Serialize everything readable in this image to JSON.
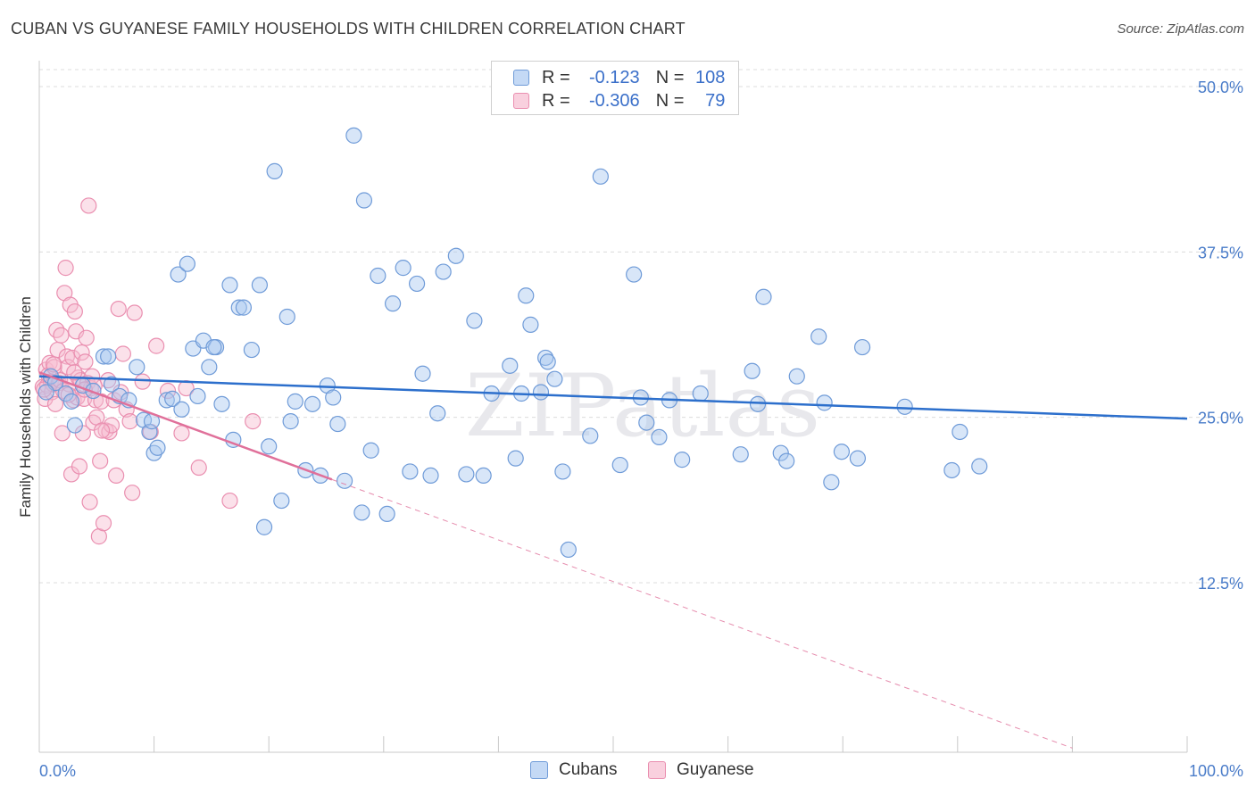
{
  "header": {
    "title": "CUBAN VS GUYANESE FAMILY HOUSEHOLDS WITH CHILDREN CORRELATION CHART",
    "source": "Source: ZipAtlas.com"
  },
  "legend_box": {
    "rows": [
      {
        "r_label": "R = ",
        "r_value": "-0.123",
        "n_label": "N = ",
        "n_value": "108"
      },
      {
        "r_label": "R = ",
        "r_value": "-0.306",
        "n_label": "N = ",
        "n_value": "79"
      }
    ]
  },
  "bottom_legend": {
    "cubans": "Cubans",
    "guyanese": "Guyanese"
  },
  "watermark": "ZIPatlas",
  "colors": {
    "cubans_fill": "#a9c7f0",
    "cubans_stroke": "#6f9bd8",
    "cubans_line": "#2c6fcc",
    "guyanese_fill": "#f6bdd0",
    "guyanese_stroke": "#ea8fb0",
    "guyanese_line": "#e0709a",
    "tick_text": "#4a7cc9",
    "grid": "#dcdcdc"
  },
  "chart_data": {
    "type": "scatter",
    "title": "CUBAN VS GUYANESE FAMILY HOUSEHOLDS WITH CHILDREN CORRELATION CHART",
    "xlabel": "",
    "ylabel": "Family Households with Children",
    "xlim": [
      0,
      100
    ],
    "ylim": [
      0,
      52
    ],
    "x_tick_labels": [
      "0.0%",
      "100.0%"
    ],
    "y_ticks": [
      12.5,
      25.0,
      37.5,
      50.0
    ],
    "y_tick_labels": [
      "12.5%",
      "25.0%",
      "37.5%",
      "50.0%"
    ],
    "grid": "horizontal dashed",
    "legend": "top-center",
    "series": [
      {
        "name": "Cubans",
        "r": -0.123,
        "n": 108,
        "trend": {
          "x": [
            0,
            100
          ],
          "y": [
            28.1,
            24.9
          ]
        },
        "points": [
          [
            1.0,
            28.1
          ],
          [
            1.4,
            27.6
          ],
          [
            2.3,
            26.8
          ],
          [
            2.8,
            26.2
          ],
          [
            3.8,
            27.4
          ],
          [
            4.7,
            27.0
          ],
          [
            5.6,
            29.6
          ],
          [
            6.3,
            27.5
          ],
          [
            7.0,
            26.6
          ],
          [
            7.8,
            26.3
          ],
          [
            8.5,
            28.8
          ],
          [
            9.1,
            24.8
          ],
          [
            9.6,
            23.9
          ],
          [
            10.0,
            22.3
          ],
          [
            10.3,
            22.7
          ],
          [
            11.1,
            26.3
          ],
          [
            11.6,
            26.4
          ],
          [
            12.1,
            35.8
          ],
          [
            12.4,
            25.6
          ],
          [
            12.9,
            36.6
          ],
          [
            13.4,
            30.2
          ],
          [
            13.8,
            26.6
          ],
          [
            14.3,
            30.8
          ],
          [
            14.8,
            28.8
          ],
          [
            15.4,
            30.3
          ],
          [
            15.9,
            26.0
          ],
          [
            16.6,
            35.0
          ],
          [
            16.9,
            23.3
          ],
          [
            17.4,
            33.3
          ],
          [
            17.8,
            33.3
          ],
          [
            18.5,
            30.1
          ],
          [
            19.2,
            35.0
          ],
          [
            19.6,
            16.7
          ],
          [
            20.0,
            22.8
          ],
          [
            20.5,
            43.6
          ],
          [
            21.1,
            18.7
          ],
          [
            21.6,
            32.6
          ],
          [
            21.9,
            24.7
          ],
          [
            22.3,
            26.2
          ],
          [
            23.2,
            21.0
          ],
          [
            23.8,
            26.0
          ],
          [
            24.5,
            20.6
          ],
          [
            25.1,
            27.4
          ],
          [
            25.6,
            26.5
          ],
          [
            26.0,
            24.5
          ],
          [
            26.6,
            20.2
          ],
          [
            27.4,
            46.3
          ],
          [
            28.1,
            17.8
          ],
          [
            28.3,
            41.4
          ],
          [
            28.9,
            22.5
          ],
          [
            29.5,
            35.7
          ],
          [
            30.3,
            17.7
          ],
          [
            30.8,
            33.6
          ],
          [
            31.7,
            36.3
          ],
          [
            32.3,
            20.9
          ],
          [
            32.9,
            35.1
          ],
          [
            33.4,
            28.3
          ],
          [
            34.1,
            20.6
          ],
          [
            34.7,
            25.3
          ],
          [
            35.2,
            36.0
          ],
          [
            36.3,
            37.2
          ],
          [
            37.2,
            20.7
          ],
          [
            37.9,
            32.3
          ],
          [
            38.7,
            20.6
          ],
          [
            39.4,
            26.8
          ],
          [
            41.0,
            28.9
          ],
          [
            41.5,
            21.9
          ],
          [
            42.0,
            26.8
          ],
          [
            42.4,
            34.2
          ],
          [
            42.8,
            32.0
          ],
          [
            43.7,
            26.9
          ],
          [
            44.1,
            29.5
          ],
          [
            44.9,
            27.9
          ],
          [
            45.6,
            20.9
          ],
          [
            46.1,
            15.0
          ],
          [
            48.0,
            23.6
          ],
          [
            48.9,
            43.2
          ],
          [
            50.6,
            21.4
          ],
          [
            51.8,
            35.8
          ],
          [
            52.4,
            26.5
          ],
          [
            52.9,
            24.6
          ],
          [
            54.0,
            23.5
          ],
          [
            54.9,
            26.3
          ],
          [
            56.0,
            21.8
          ],
          [
            57.6,
            26.8
          ],
          [
            61.1,
            22.2
          ],
          [
            62.1,
            28.5
          ],
          [
            62.6,
            26.0
          ],
          [
            63.1,
            34.1
          ],
          [
            64.6,
            22.3
          ],
          [
            65.1,
            21.7
          ],
          [
            66.0,
            28.1
          ],
          [
            67.9,
            31.1
          ],
          [
            68.4,
            26.1
          ],
          [
            69.0,
            20.1
          ],
          [
            69.9,
            22.4
          ],
          [
            71.3,
            21.9
          ],
          [
            71.7,
            30.3
          ],
          [
            75.4,
            25.8
          ],
          [
            79.5,
            21.0
          ],
          [
            80.2,
            23.9
          ],
          [
            81.9,
            21.3
          ],
          [
            0.6,
            26.9
          ],
          [
            3.1,
            24.4
          ],
          [
            6.0,
            29.6
          ],
          [
            9.8,
            24.7
          ],
          [
            15.2,
            30.3
          ],
          [
            44.3,
            29.2
          ]
        ]
      },
      {
        "name": "Guyanese",
        "r": -0.306,
        "n": 79,
        "trend": {
          "x": [
            0,
            25.5
          ],
          "y": [
            28.4,
            20.3
          ]
        },
        "trend_extrapolated": {
          "x": [
            25.5,
            90
          ],
          "y": [
            20.3,
            0
          ]
        },
        "points": [
          [
            0.3,
            27.3
          ],
          [
            0.5,
            26.4
          ],
          [
            0.6,
            28.6
          ],
          [
            0.7,
            27.4
          ],
          [
            0.8,
            28.2
          ],
          [
            0.9,
            29.1
          ],
          [
            1.0,
            27.7
          ],
          [
            1.1,
            26.9
          ],
          [
            1.2,
            27.5
          ],
          [
            1.3,
            28.8
          ],
          [
            1.4,
            26.0
          ],
          [
            1.5,
            31.6
          ],
          [
            1.6,
            30.1
          ],
          [
            1.7,
            27.6
          ],
          [
            1.8,
            27.8
          ],
          [
            1.9,
            31.2
          ],
          [
            2.0,
            23.8
          ],
          [
            2.1,
            27.0
          ],
          [
            2.2,
            34.4
          ],
          [
            2.3,
            36.3
          ],
          [
            2.4,
            29.6
          ],
          [
            2.5,
            28.8
          ],
          [
            2.6,
            27.5
          ],
          [
            2.7,
            33.5
          ],
          [
            2.8,
            20.7
          ],
          [
            2.9,
            29.5
          ],
          [
            3.0,
            26.3
          ],
          [
            3.1,
            33.0
          ],
          [
            3.2,
            31.5
          ],
          [
            3.3,
            26.5
          ],
          [
            3.4,
            28.0
          ],
          [
            3.5,
            21.3
          ],
          [
            3.6,
            27.8
          ],
          [
            3.7,
            29.9
          ],
          [
            3.8,
            23.8
          ],
          [
            3.9,
            26.4
          ],
          [
            4.0,
            29.2
          ],
          [
            4.1,
            31.0
          ],
          [
            4.2,
            27.6
          ],
          [
            4.3,
            41.0
          ],
          [
            4.4,
            18.6
          ],
          [
            4.5,
            27.2
          ],
          [
            4.6,
            28.1
          ],
          [
            4.7,
            24.6
          ],
          [
            4.8,
            27.4
          ],
          [
            4.9,
            26.3
          ],
          [
            5.0,
            25.0
          ],
          [
            5.2,
            16.0
          ],
          [
            5.3,
            21.7
          ],
          [
            5.4,
            26.2
          ],
          [
            5.6,
            17.0
          ],
          [
            5.8,
            24.0
          ],
          [
            6.0,
            27.8
          ],
          [
            6.1,
            23.9
          ],
          [
            6.3,
            24.4
          ],
          [
            6.5,
            26.3
          ],
          [
            6.7,
            20.6
          ],
          [
            6.9,
            33.2
          ],
          [
            7.1,
            26.9
          ],
          [
            7.3,
            29.8
          ],
          [
            7.6,
            25.6
          ],
          [
            7.9,
            24.7
          ],
          [
            8.1,
            19.3
          ],
          [
            8.3,
            32.9
          ],
          [
            9.0,
            27.7
          ],
          [
            9.7,
            23.9
          ],
          [
            10.2,
            30.4
          ],
          [
            11.2,
            27.0
          ],
          [
            12.4,
            23.8
          ],
          [
            12.8,
            27.2
          ],
          [
            13.9,
            21.2
          ],
          [
            16.6,
            18.7
          ],
          [
            18.6,
            24.7
          ],
          [
            0.4,
            27.1
          ],
          [
            1.25,
            29.0
          ],
          [
            2.55,
            26.7
          ],
          [
            3.05,
            28.4
          ],
          [
            3.95,
            27.1
          ],
          [
            5.45,
            24.0
          ]
        ]
      }
    ]
  }
}
